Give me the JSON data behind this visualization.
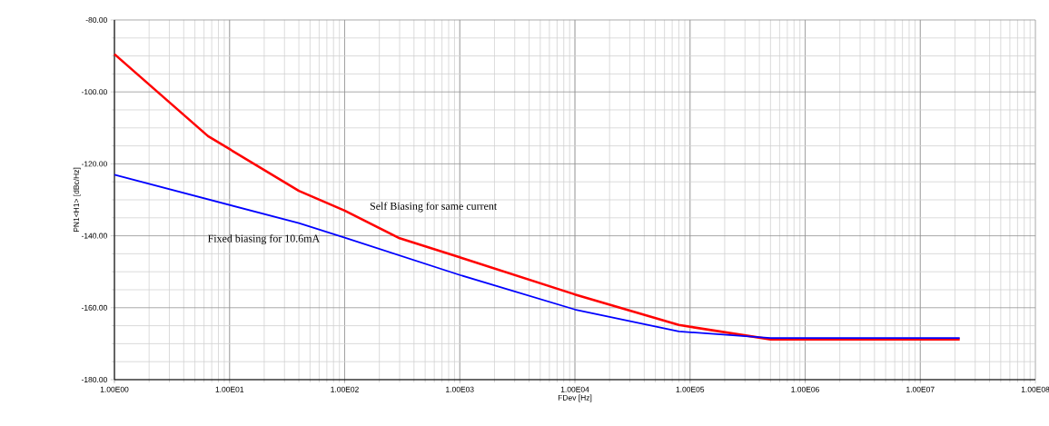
{
  "chart_data": {
    "type": "line",
    "xlabel": "FDev [Hz]",
    "ylabel": "PN1<H1> [dBc/Hz]",
    "log": "x",
    "grid": true,
    "marker": "none",
    "line_style": "solid",
    "xlim": [
      1,
      100000000
    ],
    "ylim": [
      -180,
      -80
    ],
    "xticks": [
      {
        "value": 1,
        "label": "1.00E00"
      },
      {
        "value": 10,
        "label": "1.00E01"
      },
      {
        "value": 100,
        "label": "1.00E02"
      },
      {
        "value": 1000,
        "label": "1.00E03"
      },
      {
        "value": 10000,
        "label": "1.00E04"
      },
      {
        "value": 100000,
        "label": "1.00E05"
      },
      {
        "value": 1000000,
        "label": "1.00E06"
      },
      {
        "value": 10000000,
        "label": "1.00E07"
      },
      {
        "value": 100000000,
        "label": "1.00E08"
      }
    ],
    "yticks": [
      {
        "value": -180,
        "label": "-180.00"
      },
      {
        "value": -160,
        "label": "-160.00"
      },
      {
        "value": -140,
        "label": "-140.00"
      },
      {
        "value": -120,
        "label": "-120.00"
      },
      {
        "value": -100,
        "label": "-100.00"
      },
      {
        "value": -80,
        "label": "-80.00"
      }
    ],
    "series": [
      {
        "color": "#ff0000",
        "x": [
          1,
          6.5,
          40,
          100,
          300,
          1000,
          10000,
          80000,
          500000,
          22000000
        ],
        "values": [
          -89.5,
          -112.3,
          -127.5,
          -133,
          -140.7,
          -146,
          -156.3,
          -164.8,
          -168.8,
          -168.8
        ]
      },
      {
        "color": "#0000ff",
        "x": [
          1,
          40,
          100,
          1000,
          10000,
          80000,
          500000,
          22000000
        ],
        "values": [
          -123,
          -136.5,
          -140.5,
          -150.9,
          -160.5,
          -166.6,
          -168.4,
          -168.4
        ]
      }
    ],
    "annotations": [
      "Self Biasing for same current",
      "Fixed biasing for 10.6mA"
    ]
  }
}
